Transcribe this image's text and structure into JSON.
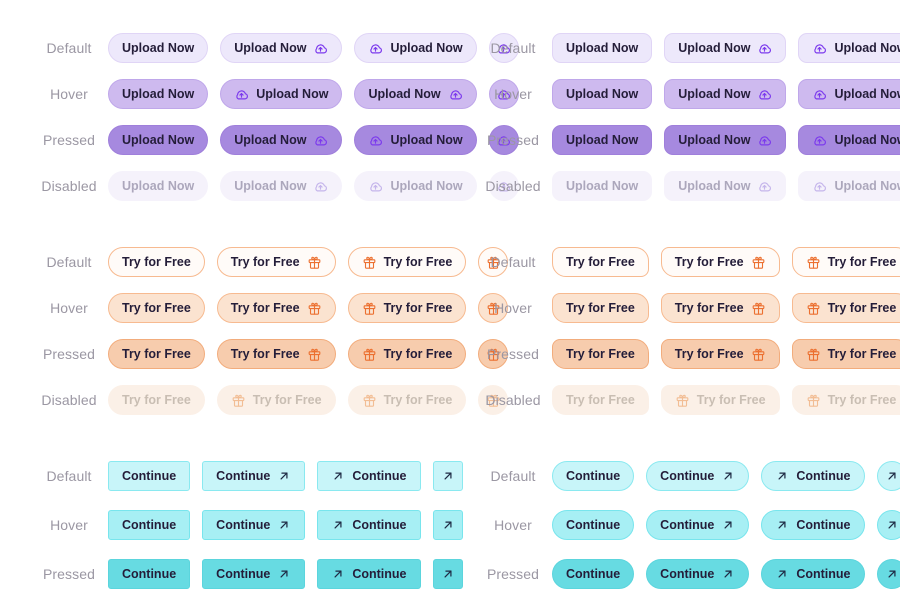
{
  "page": {
    "background": "#ffffff"
  },
  "state_labels": {
    "default": "Default",
    "hover": "Hover",
    "pressed": "Pressed",
    "disabled": "Disabled"
  },
  "colors": {
    "purple": {
      "accent": "#7C3AED",
      "default_bg": "#EDE8FB",
      "hover_bg": "#CEBAEF",
      "pressed_bg": "#A689DF",
      "disabled_bg": "#F5F2FB",
      "disabled_text": "#ACA7BC"
    },
    "orange": {
      "accent": "#EC7030",
      "border": "#F7BA90",
      "default_bg": "#FFFBF8",
      "hover_bg": "#FBE3D0",
      "pressed_bg": "#F7CCAD",
      "disabled_bg": "#FBF0E7",
      "disabled_text": "#C9BEB3"
    },
    "cyan": {
      "accent": "#1E2A44",
      "border": "#8AE9F0",
      "default_bg": "#C8F5F9",
      "hover_bg": "#A7EFF4",
      "pressed_bg": "#67DBE2"
    },
    "button_text": "#241D39",
    "state_label_text": "#9B97A3"
  },
  "groups": [
    {
      "id": "upload-now-pill",
      "label": "Upload Now",
      "icon": "cloud-upload-icon",
      "theme": "purple",
      "shape": "pill",
      "rows": [
        {
          "state": "default",
          "variants": [
            "text",
            "text-icon",
            "icon-text",
            "icon"
          ]
        },
        {
          "state": "hover",
          "variants": [
            "text",
            "icon-text",
            "text-icon",
            "icon"
          ]
        },
        {
          "state": "pressed",
          "variants": [
            "text",
            "text-icon",
            "icon-text",
            "icon"
          ]
        },
        {
          "state": "disabled",
          "variants": [
            "text",
            "text-icon",
            "icon-text",
            "icon"
          ]
        }
      ]
    },
    {
      "id": "upload-now-rounded",
      "label": "Upload Now",
      "icon": "cloud-upload-icon",
      "theme": "purple",
      "shape": "rounded",
      "rows": [
        {
          "state": "default",
          "variants": [
            "text",
            "text-icon",
            "icon-text",
            "icon"
          ]
        },
        {
          "state": "hover",
          "variants": [
            "text",
            "text-icon",
            "icon-text",
            "icon"
          ]
        },
        {
          "state": "pressed",
          "variants": [
            "text",
            "text-icon",
            "icon-text",
            "icon"
          ]
        },
        {
          "state": "disabled",
          "variants": [
            "text",
            "text-icon",
            "icon-text",
            "icon"
          ]
        }
      ]
    },
    {
      "id": "try-for-free-pill",
      "label": "Try for Free",
      "icon": "gift-icon",
      "theme": "orange",
      "shape": "pill",
      "rows": [
        {
          "state": "default",
          "variants": [
            "text",
            "text-icon",
            "icon-text",
            "icon"
          ]
        },
        {
          "state": "hover",
          "variants": [
            "text",
            "text-icon",
            "icon-text",
            "icon"
          ]
        },
        {
          "state": "pressed",
          "variants": [
            "text",
            "text-icon",
            "icon-text",
            "icon"
          ]
        },
        {
          "state": "disabled",
          "variants": [
            "text",
            "icon-text",
            "icon-text",
            "icon"
          ]
        }
      ]
    },
    {
      "id": "try-for-free-leaf",
      "label": "Try for Free",
      "icon": "gift-icon",
      "theme": "orange",
      "shape": "leaf",
      "rows": [
        {
          "state": "default",
          "variants": [
            "text",
            "text-icon",
            "icon-text",
            "icon"
          ]
        },
        {
          "state": "hover",
          "variants": [
            "text",
            "text-icon",
            "icon-text",
            "icon"
          ]
        },
        {
          "state": "pressed",
          "variants": [
            "text",
            "text-icon",
            "icon-text",
            "icon"
          ]
        },
        {
          "state": "disabled",
          "variants": [
            "text",
            "icon-text",
            "icon-text",
            "icon"
          ]
        }
      ]
    },
    {
      "id": "continue-square",
      "label": "Continue",
      "icon": "arrow-up-right-icon",
      "theme": "cyan",
      "shape": "square",
      "rows": [
        {
          "state": "default",
          "variants": [
            "text",
            "text-icon",
            "icon-text",
            "icon"
          ]
        },
        {
          "state": "hover",
          "variants": [
            "text",
            "text-icon",
            "icon-text",
            "icon"
          ]
        },
        {
          "state": "pressed",
          "variants": [
            "text",
            "text-icon",
            "icon-text",
            "icon"
          ]
        }
      ]
    },
    {
      "id": "continue-pill",
      "label": "Continue",
      "icon": "arrow-up-right-icon",
      "theme": "cyan",
      "shape": "pill",
      "rows": [
        {
          "state": "default",
          "variants": [
            "text",
            "text-icon",
            "icon-text",
            "icon"
          ]
        },
        {
          "state": "hover",
          "variants": [
            "text",
            "text-icon",
            "icon-text",
            "icon"
          ]
        },
        {
          "state": "pressed",
          "variants": [
            "text",
            "text-icon",
            "icon-text",
            "icon"
          ]
        }
      ]
    }
  ]
}
